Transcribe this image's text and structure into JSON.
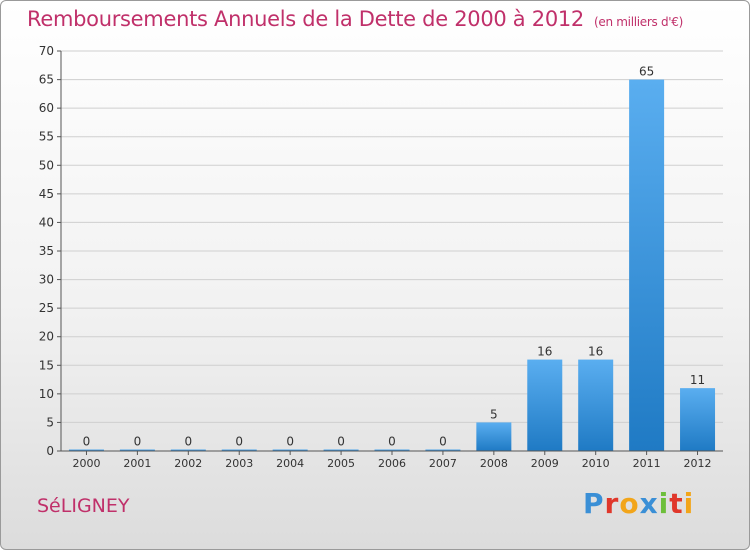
{
  "title": "Remboursements Annuels de la Dette de 2000 à 2012",
  "unit_note": "(en milliers d'€)",
  "commune": "SéLIGNEY",
  "brand": {
    "text": "Proxiti",
    "letters": [
      {
        "ch": "P",
        "color": "#3a8fd6"
      },
      {
        "ch": "r",
        "color": "#e0372b"
      },
      {
        "ch": "o",
        "color": "#f2a51a"
      },
      {
        "ch": "x",
        "color": "#3a8fd6"
      },
      {
        "ch": "i",
        "color": "#6dbf3a"
      },
      {
        "ch": "t",
        "color": "#e0372b"
      },
      {
        "ch": "i",
        "color": "#f2a51a"
      }
    ]
  },
  "chart_data": {
    "type": "bar",
    "categories": [
      "2000",
      "2001",
      "2002",
      "2003",
      "2004",
      "2005",
      "2006",
      "2007",
      "2008",
      "2009",
      "2010",
      "2011",
      "2012"
    ],
    "values": [
      0,
      0,
      0,
      0,
      0,
      0,
      0,
      0,
      5,
      16,
      16,
      65,
      11
    ],
    "ylim": [
      0,
      70
    ],
    "yticks": [
      0,
      5,
      10,
      15,
      20,
      25,
      30,
      35,
      40,
      45,
      50,
      55,
      60,
      65,
      70
    ],
    "grid": true,
    "colors": {
      "bar_light": "#5aaef0",
      "bar_dark": "#1f7ac4",
      "grid": "#cfcfcf",
      "axis": "#555555"
    }
  }
}
